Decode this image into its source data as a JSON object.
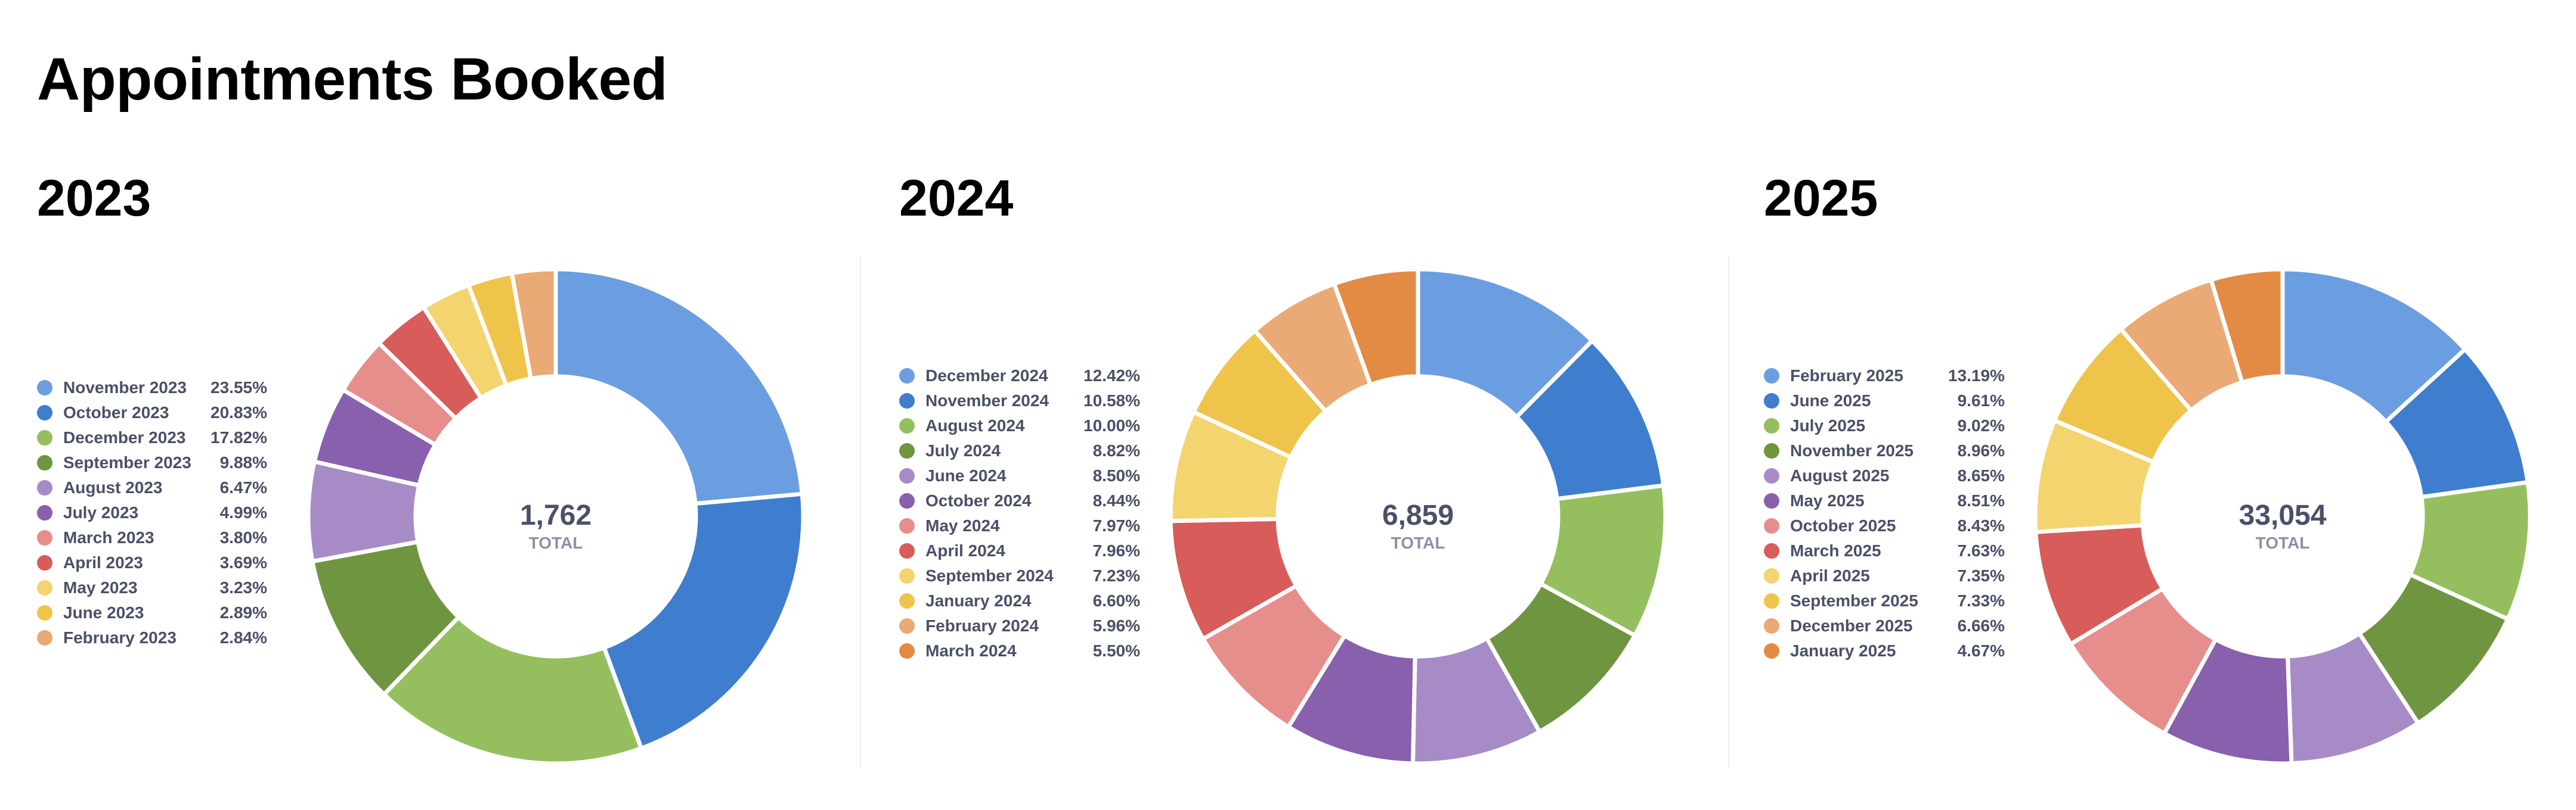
{
  "page": {
    "title": "Appointments Booked",
    "total_caption": "TOTAL"
  },
  "chart_data": [
    {
      "type": "pie",
      "variant": "donut",
      "title": "2023",
      "center_total": "1,762",
      "center_caption": "TOTAL",
      "legend_position": "left",
      "slices": [
        {
          "label": "November 2023",
          "percent": "23.55%",
          "value": 23.55,
          "color": "#6a9ee0"
        },
        {
          "label": "October 2023",
          "percent": "20.83%",
          "value": 20.83,
          "color": "#3f7dce"
        },
        {
          "label": "December 2023",
          "percent": "17.82%",
          "value": 17.82,
          "color": "#95bf5e"
        },
        {
          "label": "September 2023",
          "percent": "9.88%",
          "value": 9.88,
          "color": "#6f9540"
        },
        {
          "label": "August 2023",
          "percent": "6.47%",
          "value": 6.47,
          "color": "#a78bc7"
        },
        {
          "label": "July 2023",
          "percent": "4.99%",
          "value": 4.99,
          "color": "#8860ad"
        },
        {
          "label": "March 2023",
          "percent": "3.80%",
          "value": 3.8,
          "color": "#e58e8c"
        },
        {
          "label": "April 2023",
          "percent": "3.69%",
          "value": 3.69,
          "color": "#d75c5a"
        },
        {
          "label": "May 2023",
          "percent": "3.23%",
          "value": 3.23,
          "color": "#f3d46e"
        },
        {
          "label": "June 2023",
          "percent": "2.89%",
          "value": 2.89,
          "color": "#efc44a"
        },
        {
          "label": "February 2023",
          "percent": "2.84%",
          "value": 2.84,
          "color": "#e9aa76"
        }
      ]
    },
    {
      "type": "pie",
      "variant": "donut",
      "title": "2024",
      "center_total": "6,859",
      "center_caption": "TOTAL",
      "legend_position": "left",
      "slices": [
        {
          "label": "December 2024",
          "percent": "12.42%",
          "value": 12.42,
          "color": "#6a9ee0"
        },
        {
          "label": "November 2024",
          "percent": "10.58%",
          "value": 10.58,
          "color": "#3f7dce"
        },
        {
          "label": "August 2024",
          "percent": "10.00%",
          "value": 10.0,
          "color": "#95bf5e"
        },
        {
          "label": "July 2024",
          "percent": "8.82%",
          "value": 8.82,
          "color": "#6f9540"
        },
        {
          "label": "June 2024",
          "percent": "8.50%",
          "value": 8.5,
          "color": "#a78bc7"
        },
        {
          "label": "October 2024",
          "percent": "8.44%",
          "value": 8.44,
          "color": "#8860ad"
        },
        {
          "label": "May 2024",
          "percent": "7.97%",
          "value": 7.97,
          "color": "#e58e8c"
        },
        {
          "label": "April 2024",
          "percent": "7.96%",
          "value": 7.96,
          "color": "#d75c5a"
        },
        {
          "label": "September 2024",
          "percent": "7.23%",
          "value": 7.23,
          "color": "#f3d46e"
        },
        {
          "label": "January 2024",
          "percent": "6.60%",
          "value": 6.6,
          "color": "#efc44a"
        },
        {
          "label": "February 2024",
          "percent": "5.96%",
          "value": 5.96,
          "color": "#e9aa76"
        },
        {
          "label": "March 2024",
          "percent": "5.50%",
          "value": 5.5,
          "color": "#e38b45"
        }
      ]
    },
    {
      "type": "pie",
      "variant": "donut",
      "title": "2025",
      "center_total": "33,054",
      "center_caption": "TOTAL",
      "legend_position": "left",
      "slices": [
        {
          "label": "February 2025",
          "percent": "13.19%",
          "value": 13.19,
          "color": "#6a9ee0"
        },
        {
          "label": "June 2025",
          "percent": "9.61%",
          "value": 9.61,
          "color": "#3f7dce"
        },
        {
          "label": "July 2025",
          "percent": "9.02%",
          "value": 9.02,
          "color": "#95bf5e"
        },
        {
          "label": "November 2025",
          "percent": "8.96%",
          "value": 8.96,
          "color": "#6f9540"
        },
        {
          "label": "August 2025",
          "percent": "8.65%",
          "value": 8.65,
          "color": "#a78bc7"
        },
        {
          "label": "May 2025",
          "percent": "8.51%",
          "value": 8.51,
          "color": "#8860ad"
        },
        {
          "label": "October 2025",
          "percent": "8.43%",
          "value": 8.43,
          "color": "#e58e8c"
        },
        {
          "label": "March 2025",
          "percent": "7.63%",
          "value": 7.63,
          "color": "#d75c5a"
        },
        {
          "label": "April 2025",
          "percent": "7.35%",
          "value": 7.35,
          "color": "#f3d46e"
        },
        {
          "label": "September 2025",
          "percent": "7.33%",
          "value": 7.33,
          "color": "#efc44a"
        },
        {
          "label": "December 2025",
          "percent": "6.66%",
          "value": 6.66,
          "color": "#e9aa76"
        },
        {
          "label": "January 2025",
          "percent": "4.67%",
          "value": 4.67,
          "color": "#e38b45"
        }
      ]
    }
  ]
}
